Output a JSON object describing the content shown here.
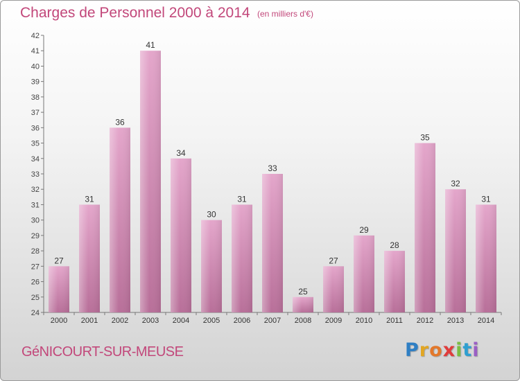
{
  "header": {
    "title": "Charges de Personnel 2000 à 2014",
    "subtitle": "(en milliers d'€)"
  },
  "footer": {
    "commune": "GéNICOURT-SUR-MEUSE",
    "logo_letters": [
      "P",
      "r",
      "o",
      "x",
      "i",
      "t",
      "i"
    ],
    "logo_colors": [
      "#2f7fc4",
      "#e2a623",
      "#e3782b",
      "#e03c3c",
      "#7bbd42",
      "#2f9fd0",
      "#9a5fc4"
    ]
  },
  "colors": {
    "bar": "#d98fba",
    "title": "#c2477a",
    "axis": "#555555"
  },
  "chart_data": {
    "type": "bar",
    "title": "Charges de Personnel 2000 à 2014",
    "subtitle": "(en milliers d'€)",
    "categories": [
      "2000",
      "2001",
      "2002",
      "2003",
      "2004",
      "2005",
      "2006",
      "2007",
      "2008",
      "2009",
      "2010",
      "2011",
      "2012",
      "2013",
      "2014"
    ],
    "values": [
      27,
      31,
      36,
      41,
      34,
      30,
      31,
      33,
      25,
      27,
      29,
      28,
      35,
      32,
      31
    ],
    "ylim": [
      24,
      42
    ],
    "yticks": [
      24,
      25,
      26,
      27,
      28,
      29,
      30,
      31,
      32,
      33,
      34,
      35,
      36,
      37,
      38,
      39,
      40,
      41,
      42
    ],
    "grid": false,
    "legend": "none"
  }
}
